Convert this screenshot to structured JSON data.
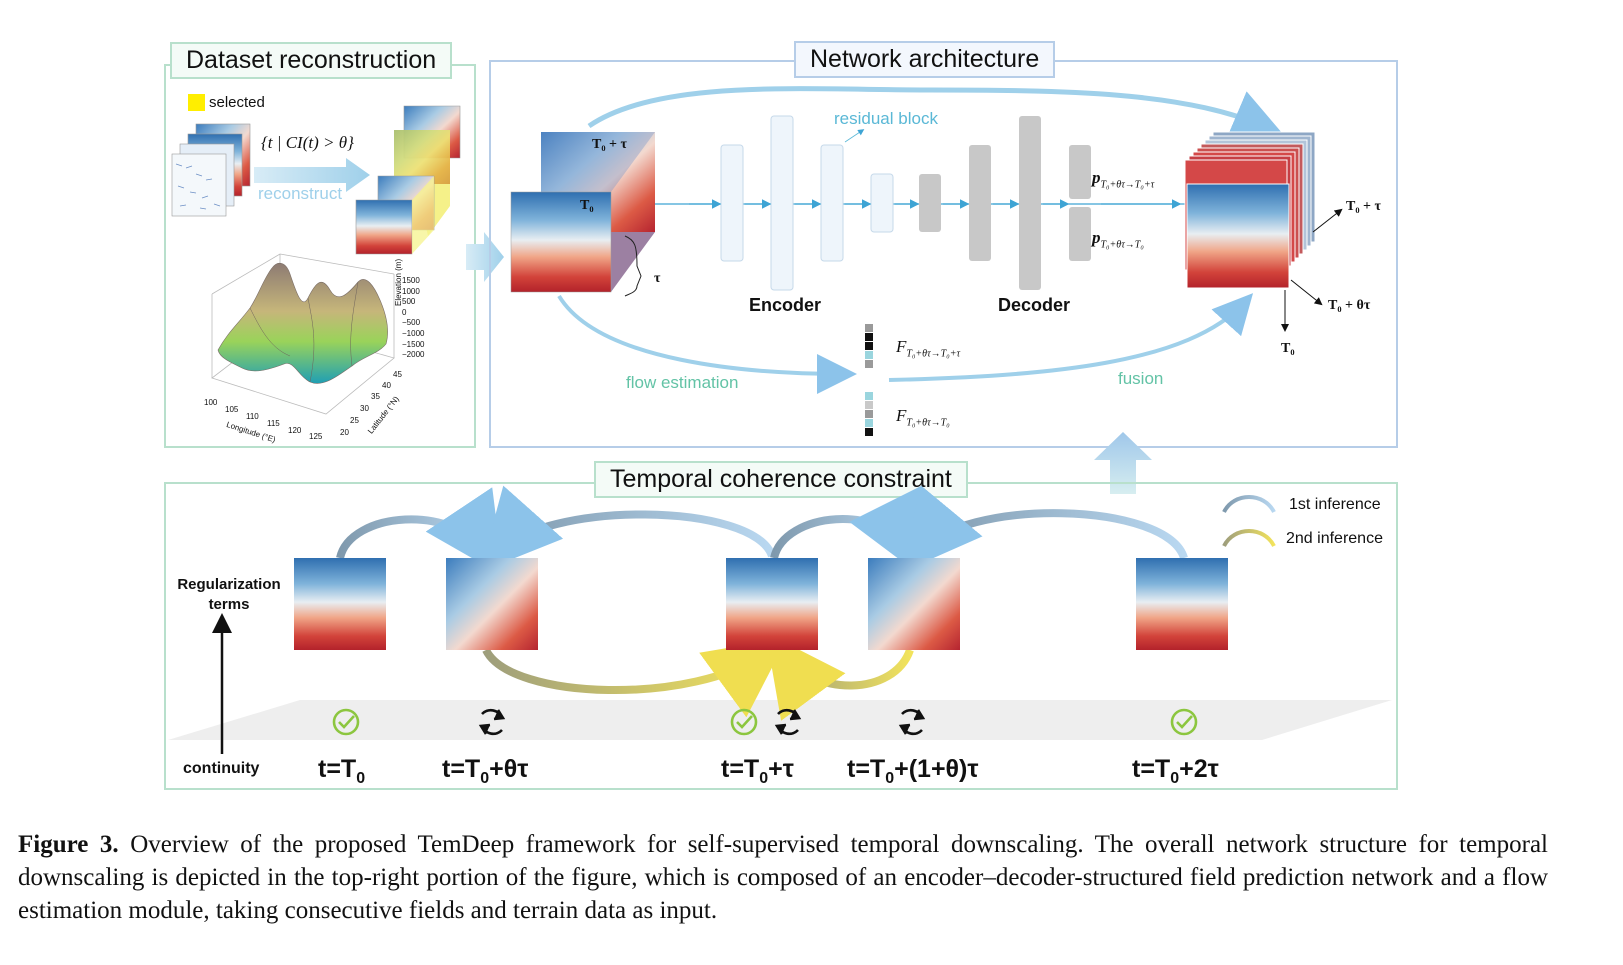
{
  "dataset_panel": {
    "title": "Dataset reconstruction",
    "legend_label": "selected",
    "legend_color": "#ffee00",
    "condition": "{t | CI(t) > θ}",
    "reconstruct_label": "reconstruct",
    "terrain_ticks_elev": [
      "1500",
      "1000",
      "500",
      "0",
      "−500",
      "−1000",
      "−1500",
      "−2000"
    ],
    "terrain_elev_axis": "Elevation (m)",
    "terrain_ticks_lon": [
      "100",
      "105",
      "110",
      "115",
      "120",
      "125"
    ],
    "terrain_lon_axis": "Longitude (°E)",
    "terrain_ticks_lat": [
      "20",
      "25",
      "30",
      "35",
      "40",
      "45"
    ],
    "terrain_lat_axis": "Latitude (°N)"
  },
  "network_panel": {
    "title": "Network architecture",
    "input_top_label": "T₀ + τ",
    "input_front_label": "T₀",
    "tau_label": "τ",
    "residual_label": "residual block",
    "encoder_label": "Encoder",
    "decoder_label": "Decoder",
    "p_top": "p",
    "p_top_sub": "T₀+θτ→T₀+τ",
    "p_bot": "p",
    "p_bot_sub": "T₀+θτ→T₀",
    "flow_label": "flow estimation",
    "fusion_label": "fusion",
    "f_top": "F",
    "f_top_sub": "T₀+θτ→T₀+τ",
    "f_bot": "F",
    "f_bot_sub": "T₀+θτ→T₀",
    "out_top": "T₀ + τ",
    "out_mid": "T₀ + θτ",
    "out_bot": "T₀"
  },
  "temporal_panel": {
    "title": "Temporal coherence constraint",
    "legend_1st": "1st inference",
    "legend_2nd": "2nd inference",
    "reg_label": "Regularization\nterms",
    "continuity_label": "continuity",
    "time_labels": [
      {
        "pre": "t=T",
        "sub": "0",
        "post": ""
      },
      {
        "pre": "t=T",
        "sub": "0",
        "post": "+θτ"
      },
      {
        "pre": "t=T",
        "sub": "0",
        "post": "+τ"
      },
      {
        "pre": "t=T",
        "sub": "0",
        "post": "+(1+θ)τ"
      },
      {
        "pre": "t=T",
        "sub": "0",
        "post": "+2τ"
      }
    ]
  },
  "caption": {
    "label": "Figure 3.",
    "text": " Overview of the proposed TemDeep framework for self-supervised temporal downscaling. The overall network structure for temporal downscaling is depicted in the top-right portion of the figure, which is composed of an encoder–decoder-structured field prediction network and a flow estimation module, taking consecutive fields and terrain data as input."
  },
  "colors": {
    "panel_green": "#b8e0cc",
    "panel_blue": "#b6cde8",
    "accent_cyan": "#5ab8d6",
    "first_inference": "#a9cde8",
    "second_inference": "#e8e070"
  }
}
